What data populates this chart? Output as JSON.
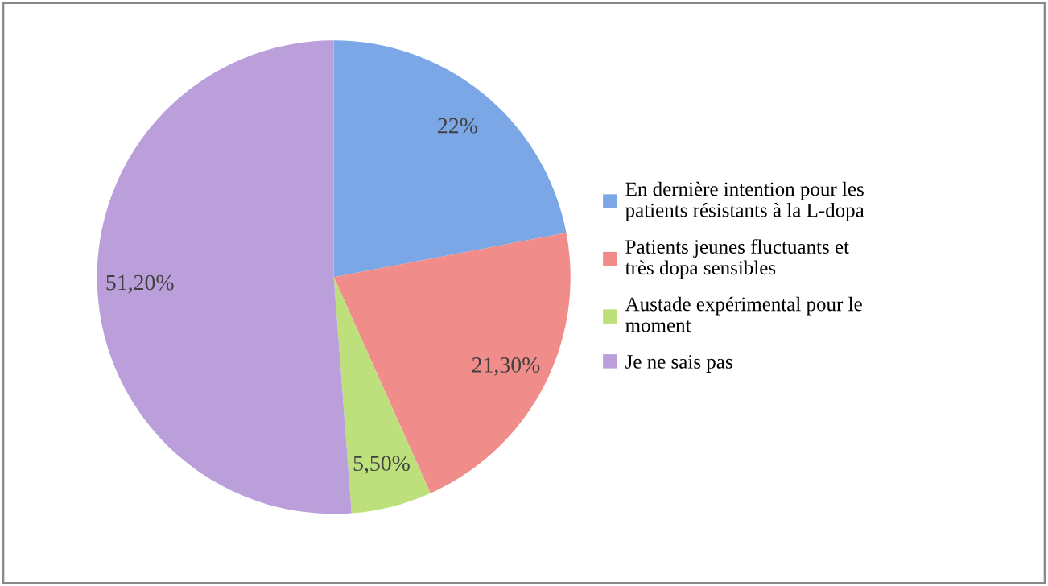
{
  "chart_data": {
    "type": "pie",
    "categories": [
      "En dernière intention pour les\npatients résistants à la L-dopa",
      "Patients jeunes fluctuants et\ntrès dopa sensibles",
      "Austade expérimental pour le\nmoment",
      "Je ne sais pas"
    ],
    "values": [
      22,
      21.3,
      5.5,
      51.2
    ],
    "value_labels": [
      "22%",
      "21,30%",
      "5,50%",
      "51,20%"
    ],
    "colors": [
      "#7ba7e6",
      "#f08c8a",
      "#bde07c",
      "#bb9fdb"
    ],
    "legend": "right"
  }
}
